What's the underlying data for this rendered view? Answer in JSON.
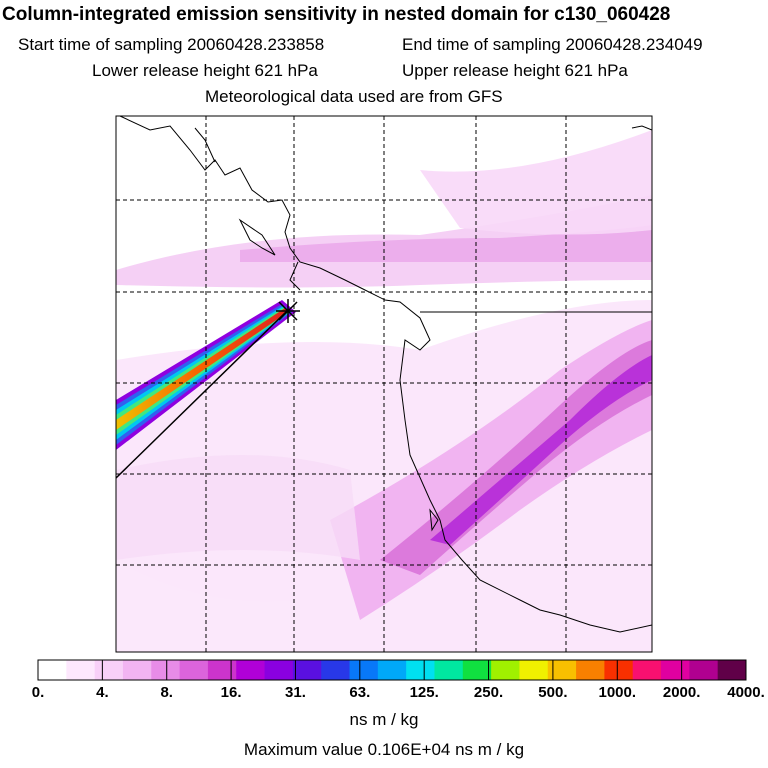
{
  "title": "Column-integrated emission sensitivity in nested domain for c130_060428",
  "header": {
    "start_label": "Start time of sampling 20060428.233858",
    "end_label": "End time of sampling 20060428.234049",
    "lower_label": "Lower release height  621 hPa",
    "upper_label": "Upper release height  621 hPa",
    "met_label": "Meteorological data used are from GFS"
  },
  "colorbar": {
    "labels": [
      "0.",
      "4.",
      "8.",
      "16.",
      "31.",
      "63.",
      "125.",
      "250.",
      "500.",
      "1000.",
      "2000.",
      "4000."
    ],
    "colors": [
      "#ffffff",
      "#fde8fd",
      "#f8d0f8",
      "#f2b4f2",
      "#e88ce8",
      "#dc64dc",
      "#cc34cc",
      "#b000d8",
      "#8a00e0",
      "#5a10e0",
      "#2838e8",
      "#0878f8",
      "#00a8f8",
      "#00e0f0",
      "#00e8a0",
      "#10e040",
      "#a0f000",
      "#f0f000",
      "#f8c000",
      "#f88000",
      "#f83000",
      "#f81070",
      "#e000a0",
      "#b00090",
      "#600048"
    ],
    "units": "ns m / kg",
    "max_value": "Maximum value  0.106E+04 ns m / kg"
  },
  "map": {
    "release_marker": "star-cross",
    "plume_colors": [
      "#9000e0",
      "#3060f0",
      "#00c0f0",
      "#00e890",
      "#c0f000",
      "#f8c800",
      "#f87000",
      "#f02020"
    ]
  }
}
